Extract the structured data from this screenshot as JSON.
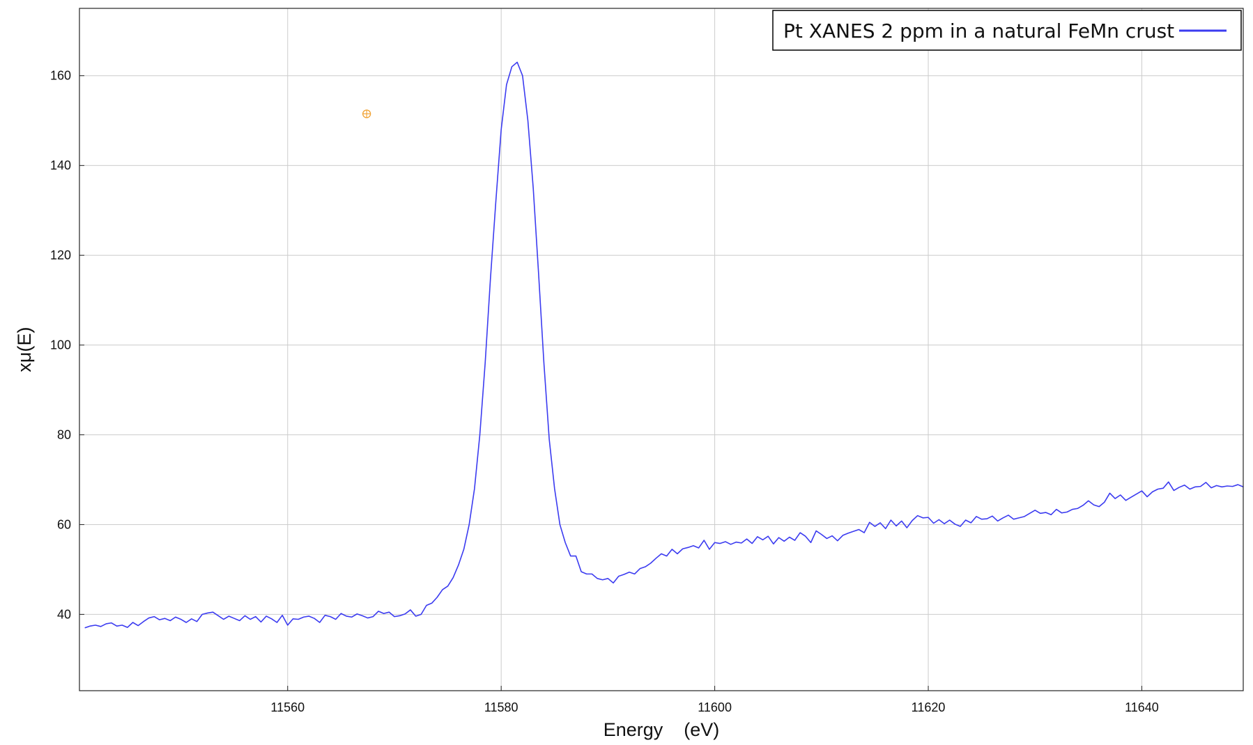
{
  "chart_data": {
    "type": "line",
    "title": "",
    "xlabel": "Energy    (eV)",
    "ylabel": "xμ(E)",
    "xlim": [
      11540.5,
      11649.5
    ],
    "ylim": [
      23,
      175
    ],
    "x_ticks": [
      11560,
      11580,
      11600,
      11620,
      11640
    ],
    "y_ticks": [
      40,
      60,
      80,
      100,
      120,
      140,
      160
    ],
    "grid": true,
    "legend_position": "top-right",
    "marker": {
      "x": 11567.4,
      "y": 151.5,
      "symbol": "circle-plus",
      "color": "#f0a030"
    },
    "series": [
      {
        "name": "Pt XANES 2 ppm in a natural FeMn crust",
        "color": "#3b3bf0",
        "points": [
          [
            11541.0,
            37.0
          ],
          [
            11541.5,
            37.4
          ],
          [
            11542.0,
            37.6
          ],
          [
            11542.5,
            37.3
          ],
          [
            11543.0,
            37.9
          ],
          [
            11543.5,
            38.1
          ],
          [
            11544.0,
            37.4
          ],
          [
            11544.5,
            37.6
          ],
          [
            11545.0,
            37.1
          ],
          [
            11545.5,
            38.2
          ],
          [
            11546.0,
            37.5
          ],
          [
            11546.5,
            38.4
          ],
          [
            11547.0,
            39.2
          ],
          [
            11547.5,
            39.5
          ],
          [
            11548.0,
            38.8
          ],
          [
            11548.5,
            39.1
          ],
          [
            11549.0,
            38.6
          ],
          [
            11549.5,
            39.4
          ],
          [
            11550.0,
            38.9
          ],
          [
            11550.5,
            38.2
          ],
          [
            11551.0,
            39.0
          ],
          [
            11551.5,
            38.4
          ],
          [
            11552.0,
            40.0
          ],
          [
            11552.5,
            40.3
          ],
          [
            11553.0,
            40.5
          ],
          [
            11553.5,
            39.7
          ],
          [
            11554.0,
            38.9
          ],
          [
            11554.5,
            39.6
          ],
          [
            11555.0,
            39.1
          ],
          [
            11555.5,
            38.6
          ],
          [
            11556.0,
            39.7
          ],
          [
            11556.5,
            38.9
          ],
          [
            11557.0,
            39.5
          ],
          [
            11557.5,
            38.3
          ],
          [
            11558.0,
            39.6
          ],
          [
            11558.5,
            39.0
          ],
          [
            11559.0,
            38.2
          ],
          [
            11559.5,
            39.8
          ],
          [
            11560.0,
            37.6
          ],
          [
            11560.5,
            39.0
          ],
          [
            11561.0,
            38.9
          ],
          [
            11561.5,
            39.4
          ],
          [
            11562.0,
            39.6
          ],
          [
            11562.5,
            39.1
          ],
          [
            11563.0,
            38.2
          ],
          [
            11563.5,
            39.8
          ],
          [
            11564.0,
            39.5
          ],
          [
            11564.5,
            38.9
          ],
          [
            11565.0,
            40.2
          ],
          [
            11565.5,
            39.6
          ],
          [
            11566.0,
            39.4
          ],
          [
            11566.5,
            40.1
          ],
          [
            11567.0,
            39.7
          ],
          [
            11567.5,
            39.2
          ],
          [
            11568.0,
            39.5
          ],
          [
            11568.5,
            40.7
          ],
          [
            11569.0,
            40.2
          ],
          [
            11569.5,
            40.5
          ],
          [
            11570.0,
            39.5
          ],
          [
            11570.5,
            39.7
          ],
          [
            11571.0,
            40.1
          ],
          [
            11571.5,
            41.0
          ],
          [
            11572.0,
            39.6
          ],
          [
            11572.5,
            40.0
          ],
          [
            11573.0,
            42.0
          ],
          [
            11573.5,
            42.5
          ],
          [
            11574.0,
            43.8
          ],
          [
            11574.5,
            45.5
          ],
          [
            11575.0,
            46.3
          ],
          [
            11575.5,
            48.2
          ],
          [
            11576.0,
            51.0
          ],
          [
            11576.5,
            54.5
          ],
          [
            11577.0,
            60.0
          ],
          [
            11577.5,
            68.0
          ],
          [
            11578.0,
            80.0
          ],
          [
            11578.5,
            96.0
          ],
          [
            11579.0,
            115.0
          ],
          [
            11579.5,
            132.0
          ],
          [
            11580.0,
            148.0
          ],
          [
            11580.5,
            158.0
          ],
          [
            11581.0,
            162.0
          ],
          [
            11581.5,
            163.0
          ],
          [
            11582.0,
            160.0
          ],
          [
            11582.5,
            150.0
          ],
          [
            11583.0,
            135.0
          ],
          [
            11583.5,
            116.0
          ],
          [
            11584.0,
            96.0
          ],
          [
            11584.5,
            79.0
          ],
          [
            11585.0,
            68.0
          ],
          [
            11585.5,
            60.0
          ],
          [
            11586.0,
            56.0
          ],
          [
            11586.5,
            53.0
          ],
          [
            11587.0,
            53.0
          ],
          [
            11587.5,
            49.5
          ],
          [
            11588.0,
            49.0
          ],
          [
            11588.5,
            49.0
          ],
          [
            11589.0,
            48.0
          ],
          [
            11589.5,
            47.7
          ],
          [
            11590.0,
            48.0
          ],
          [
            11590.5,
            47.0
          ],
          [
            11591.0,
            48.5
          ],
          [
            11591.5,
            48.9
          ],
          [
            11592.0,
            49.4
          ],
          [
            11592.5,
            49.0
          ],
          [
            11593.0,
            50.2
          ],
          [
            11593.5,
            50.6
          ],
          [
            11594.0,
            51.4
          ],
          [
            11594.5,
            52.5
          ],
          [
            11595.0,
            53.5
          ],
          [
            11595.5,
            53.0
          ],
          [
            11596.0,
            54.5
          ],
          [
            11596.5,
            53.5
          ],
          [
            11597.0,
            54.6
          ],
          [
            11597.5,
            54.9
          ],
          [
            11598.0,
            55.3
          ],
          [
            11598.5,
            54.8
          ],
          [
            11599.0,
            56.5
          ],
          [
            11599.5,
            54.5
          ],
          [
            11600.0,
            56.0
          ],
          [
            11600.5,
            55.8
          ],
          [
            11601.0,
            56.2
          ],
          [
            11601.5,
            55.6
          ],
          [
            11602.0,
            56.1
          ],
          [
            11602.5,
            55.9
          ],
          [
            11603.0,
            56.8
          ],
          [
            11603.5,
            55.8
          ],
          [
            11604.0,
            57.3
          ],
          [
            11604.5,
            56.6
          ],
          [
            11605.0,
            57.4
          ],
          [
            11605.5,
            55.7
          ],
          [
            11606.0,
            57.1
          ],
          [
            11606.5,
            56.3
          ],
          [
            11607.0,
            57.2
          ],
          [
            11607.5,
            56.5
          ],
          [
            11608.0,
            58.2
          ],
          [
            11608.5,
            57.4
          ],
          [
            11609.0,
            56.0
          ],
          [
            11609.5,
            58.6
          ],
          [
            11610.0,
            57.8
          ],
          [
            11610.5,
            56.9
          ],
          [
            11611.0,
            57.5
          ],
          [
            11611.5,
            56.4
          ],
          [
            11612.0,
            57.6
          ],
          [
            11612.5,
            58.1
          ],
          [
            11613.0,
            58.5
          ],
          [
            11613.5,
            58.9
          ],
          [
            11614.0,
            58.2
          ],
          [
            11614.5,
            60.5
          ],
          [
            11615.0,
            59.6
          ],
          [
            11615.5,
            60.4
          ],
          [
            11616.0,
            59.1
          ],
          [
            11616.5,
            61.0
          ],
          [
            11617.0,
            59.7
          ],
          [
            11617.5,
            60.8
          ],
          [
            11618.0,
            59.3
          ],
          [
            11618.5,
            60.9
          ],
          [
            11619.0,
            62.0
          ],
          [
            11619.5,
            61.5
          ],
          [
            11620.0,
            61.6
          ],
          [
            11620.5,
            60.3
          ],
          [
            11621.0,
            61.1
          ],
          [
            11621.5,
            60.2
          ],
          [
            11622.0,
            61.0
          ],
          [
            11622.5,
            60.1
          ],
          [
            11623.0,
            59.6
          ],
          [
            11623.5,
            61.0
          ],
          [
            11624.0,
            60.4
          ],
          [
            11624.5,
            61.8
          ],
          [
            11625.0,
            61.2
          ],
          [
            11625.5,
            61.3
          ],
          [
            11626.0,
            61.9
          ],
          [
            11626.5,
            60.8
          ],
          [
            11627.0,
            61.5
          ],
          [
            11627.5,
            62.1
          ],
          [
            11628.0,
            61.2
          ],
          [
            11628.5,
            61.5
          ],
          [
            11629.0,
            61.8
          ],
          [
            11629.5,
            62.5
          ],
          [
            11630.0,
            63.2
          ],
          [
            11630.5,
            62.5
          ],
          [
            11631.0,
            62.7
          ],
          [
            11631.5,
            62.2
          ],
          [
            11632.0,
            63.4
          ],
          [
            11632.5,
            62.6
          ],
          [
            11633.0,
            62.8
          ],
          [
            11633.5,
            63.4
          ],
          [
            11634.0,
            63.6
          ],
          [
            11634.5,
            64.3
          ],
          [
            11635.0,
            65.3
          ],
          [
            11635.5,
            64.4
          ],
          [
            11636.0,
            64.0
          ],
          [
            11636.5,
            65.0
          ],
          [
            11637.0,
            67.0
          ],
          [
            11637.5,
            65.8
          ],
          [
            11638.0,
            66.6
          ],
          [
            11638.5,
            65.4
          ],
          [
            11639.0,
            66.1
          ],
          [
            11639.5,
            66.8
          ],
          [
            11640.0,
            67.5
          ],
          [
            11640.5,
            66.2
          ],
          [
            11641.0,
            67.3
          ],
          [
            11641.5,
            67.9
          ],
          [
            11642.0,
            68.1
          ],
          [
            11642.5,
            69.5
          ],
          [
            11643.0,
            67.6
          ],
          [
            11643.5,
            68.3
          ],
          [
            11644.0,
            68.8
          ],
          [
            11644.5,
            67.9
          ],
          [
            11645.0,
            68.4
          ],
          [
            11645.5,
            68.5
          ],
          [
            11646.0,
            69.4
          ],
          [
            11646.5,
            68.2
          ],
          [
            11647.0,
            68.7
          ],
          [
            11647.5,
            68.4
          ],
          [
            11648.0,
            68.6
          ],
          [
            11648.5,
            68.5
          ],
          [
            11649.0,
            68.9
          ],
          [
            11649.5,
            68.4
          ]
        ]
      }
    ]
  }
}
